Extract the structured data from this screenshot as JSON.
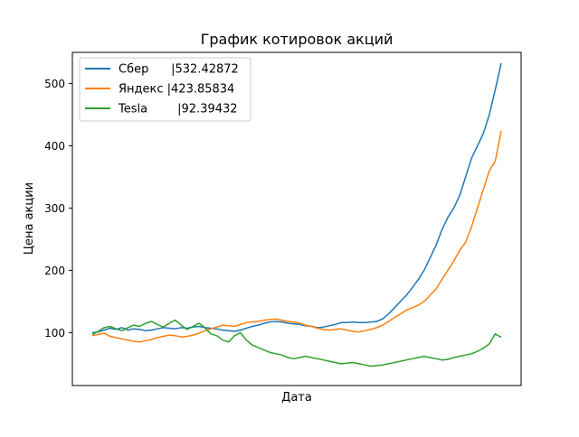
{
  "chart_data": {
    "type": "line",
    "title": "График котировок акций",
    "xlabel": "Дата",
    "ylabel": "Цена акции",
    "ylim": [
      15,
      550
    ],
    "x_ticks_shown": false,
    "grid": false,
    "legend_position": "upper-left",
    "yticks": [
      {
        "value": 100,
        "label": "100"
      },
      {
        "value": 200,
        "label": "200"
      },
      {
        "value": 300,
        "label": "300"
      },
      {
        "value": 400,
        "label": "400"
      },
      {
        "value": 500,
        "label": "500"
      }
    ],
    "series": [
      {
        "name": "Сбер      |532.42872",
        "color": "#1f77b4",
        "values": [
          100,
          101,
          104,
          107,
          105,
          108,
          104,
          106,
          105,
          103,
          104,
          106,
          108,
          107,
          106,
          108,
          107,
          109,
          110,
          108,
          107,
          106,
          104,
          103,
          102,
          104,
          107,
          110,
          112,
          115,
          117,
          118,
          117,
          115,
          114,
          113,
          111,
          110,
          108,
          109,
          111,
          113,
          116,
          116,
          117,
          116,
          116,
          117,
          118,
          122,
          130,
          140,
          150,
          160,
          172,
          185,
          200,
          220,
          240,
          265,
          285,
          300,
          320,
          350,
          380,
          400,
          420,
          450,
          490,
          532.42872
        ]
      },
      {
        "name": "Яндекс |423.85834",
        "color": "#ff7f0e",
        "values": [
          95,
          97,
          99,
          94,
          92,
          90,
          88,
          86,
          85,
          87,
          89,
          92,
          94,
          96,
          95,
          93,
          94,
          96,
          99,
          103,
          106,
          109,
          112,
          111,
          110,
          113,
          116,
          117,
          118,
          120,
          121,
          122,
          120,
          118,
          117,
          115,
          112,
          110,
          107,
          105,
          104,
          105,
          106,
          104,
          102,
          101,
          103,
          105,
          108,
          112,
          118,
          124,
          130,
          136,
          140,
          144,
          150,
          160,
          170,
          185,
          200,
          215,
          232,
          245,
          270,
          300,
          330,
          360,
          375,
          423.85834
        ]
      },
      {
        "name": "Tesla        |92.39432",
        "color": "#2ca02c",
        "values": [
          97,
          102,
          108,
          110,
          106,
          103,
          108,
          112,
          110,
          115,
          118,
          113,
          109,
          115,
          120,
          112,
          105,
          110,
          115,
          108,
          98,
          95,
          88,
          85,
          95,
          100,
          88,
          80,
          76,
          72,
          68,
          66,
          64,
          60,
          58,
          60,
          62,
          60,
          58,
          56,
          54,
          52,
          50,
          51,
          52,
          50,
          48,
          46,
          47,
          48,
          50,
          52,
          54,
          56,
          58,
          60,
          62,
          60,
          58,
          56,
          57,
          60,
          62,
          64,
          66,
          70,
          75,
          82,
          98,
          92.39432
        ]
      }
    ]
  }
}
